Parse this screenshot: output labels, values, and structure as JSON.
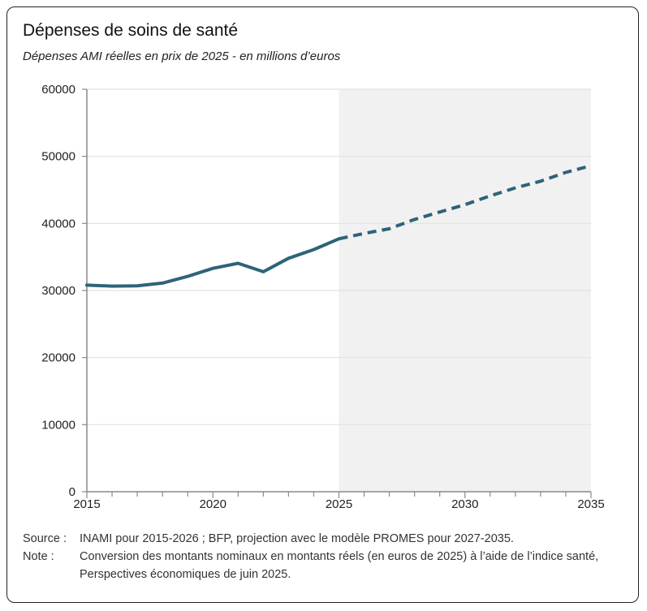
{
  "title": "Dépenses de soins de santé",
  "subtitle": "Dépenses AMI réelles en prix de 2025 - en millions d’euros",
  "chart_data": {
    "type": "line",
    "x": [
      2015,
      2016,
      2017,
      2018,
      2019,
      2020,
      2021,
      2022,
      2023,
      2024,
      2025,
      2026,
      2027,
      2028,
      2029,
      2030,
      2031,
      2032,
      2033,
      2034,
      2035
    ],
    "series": [
      {
        "values": [
          30800,
          30650,
          30700,
          31100,
          32100,
          33300,
          34050,
          32800,
          34800,
          36100,
          37700,
          38500,
          39200,
          40600,
          41700,
          42800,
          44100,
          45300,
          46300,
          47600,
          48600
        ],
        "solid_until": 2025,
        "dashed_from": 2025,
        "color": "#2e6378"
      }
    ],
    "xlim": [
      2015,
      2035
    ],
    "ylim": [
      0,
      60000
    ],
    "y_ticks": [
      0,
      10000,
      20000,
      30000,
      40000,
      50000,
      60000
    ],
    "x_tick_labels": [
      2015,
      2020,
      2025,
      2030,
      2035
    ],
    "projection_shaded_from": 2025,
    "shade_color": "#f1f1f1",
    "grid": true
  },
  "notes": {
    "source_label": "Source :",
    "source_text": "INAMI pour 2015-2026 ; BFP, projection avec le modèle PROMES pour 2027-2035.",
    "note_label": "Note :",
    "note_text": "Conversion des montants nominaux en montants réels (en euros de 2025) à l’aide de l’indice santé, Perspectives économiques de juin 2025."
  }
}
